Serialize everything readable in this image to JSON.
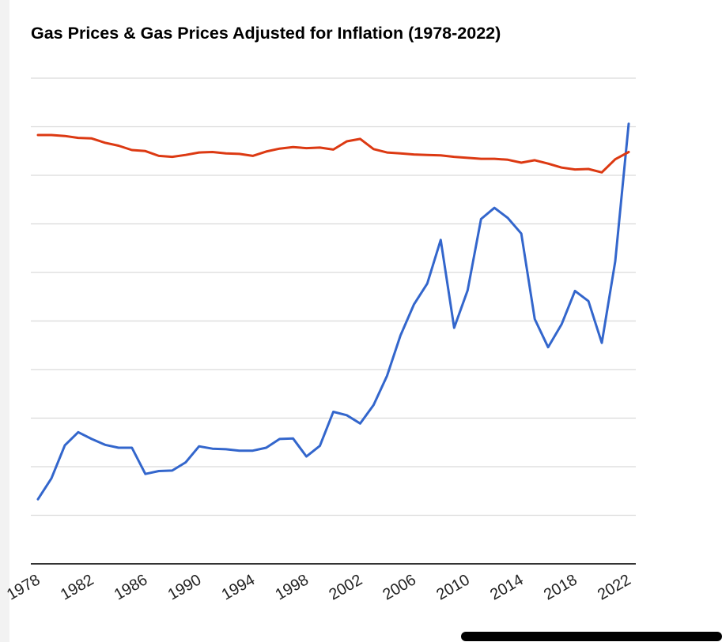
{
  "chart_data": {
    "type": "line",
    "title": "Gas Prices & Gas Prices Adjusted for Inflation (1978-2022)",
    "xlabel": "",
    "ylabel": "",
    "x_tick_labels": [
      "1978",
      "1982",
      "1986",
      "1990",
      "1994",
      "1998",
      "2002",
      "2006",
      "2010",
      "2014",
      "2018",
      "2022"
    ],
    "xlim": [
      1978,
      2022
    ],
    "ylim": [
      0,
      10
    ],
    "grid": true,
    "legend": "none",
    "x": [
      1978,
      1979,
      1980,
      1981,
      1982,
      1983,
      1984,
      1985,
      1986,
      1987,
      1988,
      1989,
      1990,
      1991,
      1992,
      1993,
      1994,
      1995,
      1996,
      1997,
      1998,
      1999,
      2000,
      2001,
      2002,
      2003,
      2004,
      2005,
      2006,
      2007,
      2008,
      2009,
      2010,
      2011,
      2012,
      2013,
      2014,
      2015,
      2016,
      2017,
      2018,
      2019,
      2020,
      2021,
      2022
    ],
    "series": [
      {
        "name": "Gas Prices",
        "color": "#3366cc",
        "values": [
          1.33,
          1.76,
          2.44,
          2.71,
          2.57,
          2.45,
          2.39,
          2.39,
          1.85,
          1.91,
          1.92,
          2.09,
          2.42,
          2.37,
          2.36,
          2.33,
          2.33,
          2.39,
          2.57,
          2.58,
          2.21,
          2.43,
          3.13,
          3.06,
          2.89,
          3.27,
          3.87,
          4.7,
          5.34,
          5.77,
          6.67,
          4.86,
          5.63,
          7.1,
          7.33,
          7.12,
          6.8,
          5.04,
          4.46,
          4.93,
          5.62,
          5.41,
          4.55,
          6.23,
          9.06
        ]
      },
      {
        "name": "Gas Prices Adjusted for Inflation",
        "color": "#dc3912",
        "values": [
          8.83,
          8.83,
          8.81,
          8.77,
          8.76,
          8.67,
          8.61,
          8.52,
          8.5,
          8.4,
          8.38,
          8.42,
          8.47,
          8.48,
          8.45,
          8.44,
          8.4,
          8.49,
          8.55,
          8.58,
          8.56,
          8.57,
          8.53,
          8.7,
          8.75,
          8.54,
          8.47,
          8.45,
          8.43,
          8.42,
          8.41,
          8.38,
          8.36,
          8.34,
          8.34,
          8.32,
          8.26,
          8.31,
          8.24,
          8.16,
          8.12,
          8.13,
          8.06,
          8.33,
          8.48
        ]
      }
    ]
  },
  "colors": {
    "gridline": "#dadada",
    "baseline": "#333333",
    "tick_text": "#222222"
  }
}
